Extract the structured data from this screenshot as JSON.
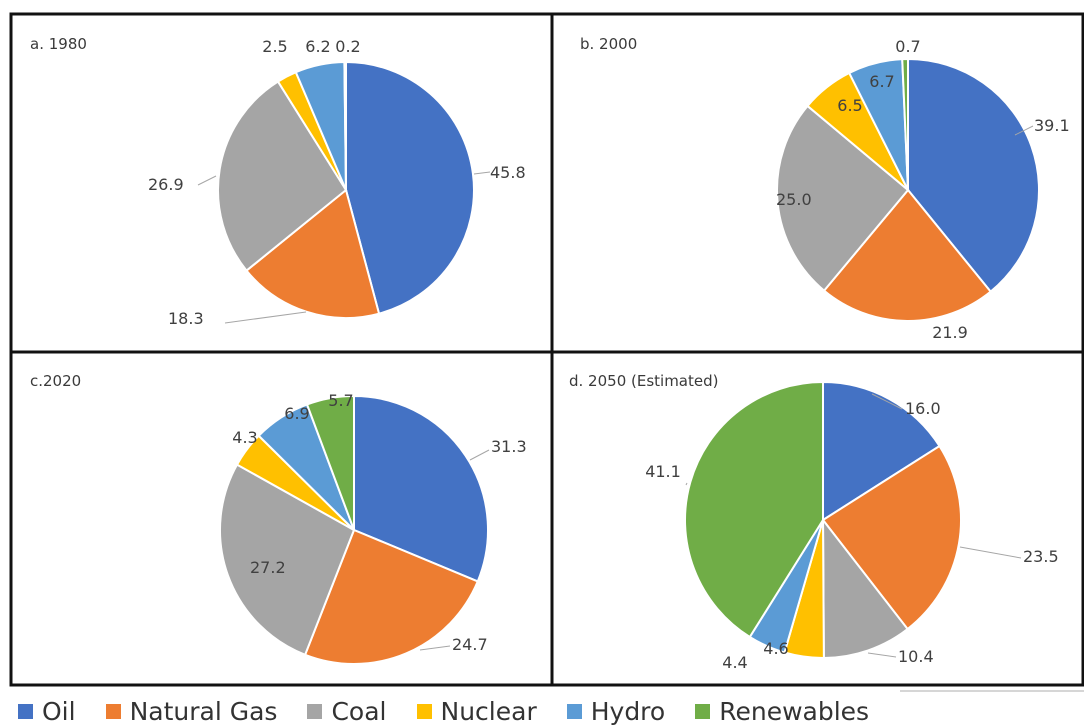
{
  "colors": {
    "Oil": "#4472C4",
    "Natural Gas": "#ED7D31",
    "Coal": "#A5A5A5",
    "Nuclear": "#FFC000",
    "Hydro": "#5B9BD5",
    "Renewables": "#70AD47"
  },
  "legend": [
    {
      "label": "Oil",
      "color": "#4472C4"
    },
    {
      "label": "Natural Gas",
      "color": "#ED7D31"
    },
    {
      "label": "Coal",
      "color": "#A5A5A5"
    },
    {
      "label": "Nuclear",
      "color": "#FFC000"
    },
    {
      "label": "Hydro",
      "color": "#5B9BD5"
    },
    {
      "label": "Renewables",
      "color": "#70AD47"
    }
  ],
  "chart_data": [
    {
      "type": "pie",
      "title": "a. 1980",
      "categories": [
        "Oil",
        "Natural Gas",
        "Coal",
        "Nuclear",
        "Hydro",
        "Renewables"
      ],
      "values": [
        45.8,
        18.3,
        26.9,
        2.5,
        6.2,
        0.2
      ],
      "labels": [
        "45.8",
        "18.3",
        "26.9",
        "2.5",
        "6.2",
        "0.2"
      ]
    },
    {
      "type": "pie",
      "title": "b. 2000",
      "categories": [
        "Oil",
        "Natural Gas",
        "Coal",
        "Nuclear",
        "Hydro",
        "Renewables"
      ],
      "values": [
        39.1,
        21.9,
        25.0,
        6.5,
        6.7,
        0.7
      ],
      "labels": [
        "39.1",
        "21.9",
        "25.0",
        "6.5",
        "6.7",
        "0.7"
      ]
    },
    {
      "type": "pie",
      "title": "c.2020",
      "categories": [
        "Oil",
        "Natural Gas",
        "Coal",
        "Nuclear",
        "Hydro",
        "Renewables"
      ],
      "values": [
        31.3,
        24.7,
        27.2,
        4.3,
        6.9,
        5.7
      ],
      "labels": [
        "31.3",
        "24.7",
        "27.2",
        "4.3",
        "6.9",
        "5.7"
      ]
    },
    {
      "type": "pie",
      "title": "d. 2050 (Estimated)",
      "categories": [
        "Oil",
        "Natural Gas",
        "Coal",
        "Nuclear",
        "Hydro",
        "Renewables"
      ],
      "values": [
        16.0,
        23.5,
        10.4,
        4.6,
        4.4,
        41.1
      ],
      "labels": [
        "16.0",
        "23.5",
        "10.4",
        "4.6",
        "4.4",
        "41.1"
      ]
    }
  ]
}
